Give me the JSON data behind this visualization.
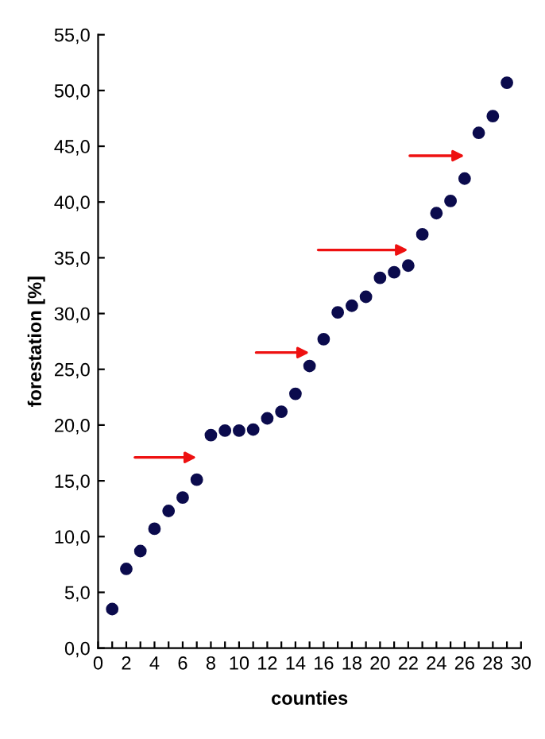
{
  "chart_data": {
    "type": "scatter",
    "xlabel": "counties",
    "ylabel": "forestation [%]",
    "x": [
      1,
      2,
      3,
      4,
      5,
      6,
      7,
      8,
      9,
      10,
      11,
      12,
      13,
      14,
      15,
      16,
      17,
      18,
      19,
      20,
      21,
      22,
      23,
      24,
      25,
      26,
      27,
      28,
      29
    ],
    "values": [
      3.5,
      7.1,
      8.7,
      10.7,
      12.3,
      13.5,
      15.1,
      19.1,
      19.5,
      19.5,
      19.6,
      20.6,
      21.2,
      22.8,
      25.3,
      27.7,
      30.1,
      30.7,
      31.5,
      33.2,
      33.7,
      34.3,
      37.1,
      39.0,
      40.1,
      42.1,
      46.2,
      47.7,
      50.7
    ],
    "color": "#0b0b4d",
    "marker": "circle",
    "xlim": [
      0,
      30
    ],
    "xticks": [
      0,
      {
        "value": 1,
        "label": null
      },
      2,
      {
        "value": 3,
        "label": null
      },
      4,
      {
        "value": 5,
        "label": null
      },
      6,
      {
        "value": 7,
        "label": null
      },
      8,
      {
        "value": 9,
        "label": null
      },
      10,
      {
        "value": 11,
        "label": null
      },
      12,
      {
        "value": 13,
        "label": null
      },
      14,
      {
        "value": 15,
        "label": null
      },
      16,
      {
        "value": 17,
        "label": null
      },
      18,
      {
        "value": 19,
        "label": null
      },
      20,
      {
        "value": 21,
        "label": null
      },
      22,
      {
        "value": 23,
        "label": null
      },
      24,
      {
        "value": 25,
        "label": null
      },
      26,
      {
        "value": 27,
        "label": null
      },
      28,
      {
        "value": 29,
        "label": null
      },
      30
    ],
    "ylim": [
      0,
      55
    ],
    "yticks": [
      {
        "value": 0,
        "label": "0,0"
      },
      {
        "value": 5,
        "label": "5,0"
      },
      {
        "value": 10,
        "label": "10,0"
      },
      {
        "value": 15,
        "label": "15,0"
      },
      {
        "value": 20,
        "label": "20,0"
      },
      {
        "value": 25,
        "label": "25,0"
      },
      {
        "value": 30,
        "label": "30,0"
      },
      {
        "value": 35,
        "label": "35,0"
      },
      {
        "value": 40,
        "label": "40,0"
      },
      {
        "value": 45,
        "label": "45,0"
      },
      {
        "value": 50,
        "label": "50,0"
      },
      {
        "value": 55,
        "label": "55,0"
      }
    ],
    "grid": false
  }
}
